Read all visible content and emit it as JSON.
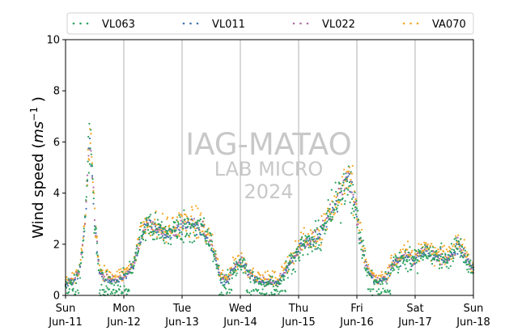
{
  "chart_data": {
    "type": "scatter",
    "ylabel": "Wind speed (ms⁻¹)",
    "ylabel_main": "Wind speed (",
    "ylabel_unit_ms": "ms",
    "ylabel_unit_exp": "−1",
    "ylabel_close": " )",
    "ylim": [
      0,
      10
    ],
    "y_ticks": [
      "0",
      "2",
      "4",
      "6",
      "8",
      "10"
    ],
    "xlim_hours": [
      0,
      168
    ],
    "x_ticks": [
      {
        "day": "Sun",
        "date": "Jun-11"
      },
      {
        "day": "Mon",
        "date": "Jun-12"
      },
      {
        "day": "Tue",
        "date": "Jun-13"
      },
      {
        "day": "Wed",
        "date": "Jun-14"
      },
      {
        "day": "Thu",
        "date": "Jun-15"
      },
      {
        "day": "Fri",
        "date": "Jun-16"
      },
      {
        "day": "Sat",
        "date": "Jun-17"
      },
      {
        "day": "Sun",
        "date": "Jun-18"
      }
    ],
    "grid": "vertical",
    "legend_position": "top",
    "profile_hours": [
      0,
      4,
      6,
      8,
      9,
      10,
      11,
      12,
      14,
      18,
      22,
      24,
      28,
      31,
      34,
      36,
      38,
      42,
      46,
      48,
      52,
      56,
      60,
      64,
      66,
      69,
      72,
      76,
      80,
      84,
      88,
      92,
      95,
      98,
      100,
      104,
      108,
      112,
      116,
      118,
      120,
      124,
      128,
      132,
      135,
      138,
      140,
      142,
      143,
      144,
      146,
      148,
      152,
      156,
      158,
      162,
      164,
      166,
      168
    ],
    "profile_values": [
      0.4,
      0.6,
      1.0,
      2.8,
      4.5,
      6.0,
      4.8,
      3.0,
      0.8,
      0.6,
      0.6,
      0.7,
      1.2,
      2.3,
      2.8,
      2.6,
      2.5,
      2.4,
      2.6,
      2.7,
      2.7,
      2.6,
      2.0,
      0.6,
      0.5,
      1.0,
      1.3,
      0.8,
      0.5,
      0.5,
      0.5,
      1.2,
      1.6,
      2.0,
      2.0,
      2.2,
      3.0,
      3.6,
      4.6,
      4.2,
      3.0,
      1.0,
      0.5,
      0.6,
      1.2,
      1.4,
      1.5,
      1.4,
      1.3,
      1.4,
      1.6,
      1.8,
      1.5,
      1.5,
      1.4,
      2.0,
      1.6,
      1.2,
      1.0
    ],
    "series": [
      {
        "name": "VL063",
        "color": "#2ca25f"
      },
      {
        "name": "VL011",
        "color": "#3f72b0"
      },
      {
        "name": "VL022",
        "color": "#b06ca8"
      },
      {
        "name": "VA070",
        "color": "#f5a623"
      }
    ]
  },
  "watermark": {
    "line1": "IAG-MATAO",
    "line2": "LAB MICRO",
    "line3": "2024"
  }
}
